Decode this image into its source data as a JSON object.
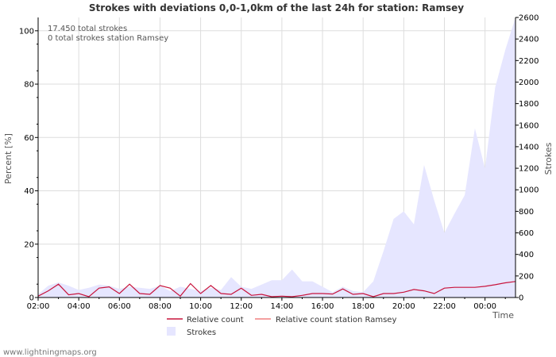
{
  "chart_data": {
    "type": "area",
    "title": "Strokes with deviations 0,0-1,0km of the last 24h for station: Ramsey",
    "xlabel": "Time",
    "ylabel_left": "Percent   [%]",
    "ylabel_right": "Strokes",
    "ylim_left": [
      0,
      105
    ],
    "ylim_right": [
      0,
      2600
    ],
    "yticks_left": [
      "0",
      "20",
      "40",
      "60",
      "80",
      "100"
    ],
    "yticks_right": [
      "0",
      "200",
      "400",
      "600",
      "800",
      "1000",
      "1200",
      "1400",
      "1600",
      "1800",
      "2000",
      "2200",
      "2400",
      "2600"
    ],
    "xticks": [
      "02:00",
      "04:00",
      "06:00",
      "08:00",
      "10:00",
      "12:00",
      "14:00",
      "16:00",
      "18:00",
      "20:00",
      "22:00",
      "00:00"
    ],
    "x_unit": "hours since 02:00",
    "annotations": [
      "17.450 total strokes",
      "0 total strokes station Ramsey"
    ],
    "grid": true,
    "legend": [
      {
        "label": "Relative count",
        "color": "#c8143c",
        "kind": "line"
      },
      {
        "label": "Relative count station Ramsey",
        "color": "#f08080",
        "kind": "line"
      },
      {
        "label": "Strokes",
        "color": "#e6e6ff",
        "kind": "area"
      }
    ],
    "series": [
      {
        "name": "Strokes",
        "axis": "right",
        "x": [
          0,
          0.5,
          1,
          1.5,
          2,
          2.5,
          3,
          3.5,
          4,
          4.5,
          5,
          5.5,
          6,
          6.5,
          7,
          7.5,
          8,
          8.5,
          9,
          9.5,
          10,
          10.5,
          11,
          11.5,
          12,
          12.5,
          13,
          13.5,
          14,
          14.5,
          15,
          15.5,
          16,
          16.5,
          17,
          17.5,
          18,
          18.5,
          19,
          19.5,
          20,
          20.5,
          21,
          21.5,
          22,
          22.5,
          23,
          23.5
        ],
        "values": [
          30,
          110,
          140,
          110,
          70,
          90,
          120,
          110,
          80,
          100,
          90,
          80,
          110,
          60,
          100,
          80,
          60,
          90,
          70,
          190,
          100,
          80,
          120,
          160,
          160,
          260,
          150,
          150,
          100,
          50,
          100,
          60,
          50,
          150,
          430,
          730,
          800,
          680,
          1230,
          900,
          600,
          780,
          950,
          1570,
          1200,
          1950,
          2300,
          2600
        ]
      },
      {
        "name": "Relative count",
        "axis": "left",
        "x": [
          0,
          0.5,
          1,
          1.5,
          2,
          2.5,
          3,
          3.5,
          4,
          4.5,
          5,
          5.5,
          6,
          6.5,
          7,
          7.5,
          8,
          8.5,
          9,
          9.5,
          10,
          10.5,
          11,
          11.5,
          12,
          12.5,
          13,
          13.5,
          14,
          14.5,
          15,
          15.5,
          16,
          16.5,
          17,
          17.5,
          18,
          18.5,
          19,
          19.5,
          20,
          20.5,
          21,
          21.5,
          22,
          22.5,
          23,
          23.5
        ],
        "values": [
          0.5,
          2.5,
          5,
          1,
          1.5,
          0.3,
          3.5,
          4,
          1.5,
          5,
          1.5,
          1.2,
          4.5,
          3.5,
          0.5,
          5.2,
          1.5,
          4.5,
          1.5,
          1.2,
          3.5,
          0.8,
          1.2,
          0.3,
          0.5,
          0.3,
          0.8,
          1.5,
          1.5,
          1.3,
          3.2,
          1.2,
          1.5,
          0.3,
          1.5,
          1.5,
          2,
          3,
          2.5,
          1.5,
          3.5,
          3.8,
          3.8,
          3.8,
          4.2,
          4.8,
          5.5,
          6
        ]
      },
      {
        "name": "Relative count station Ramsey",
        "axis": "left",
        "x": [],
        "values": []
      }
    ]
  },
  "footer": "www.lightningmaps.org"
}
